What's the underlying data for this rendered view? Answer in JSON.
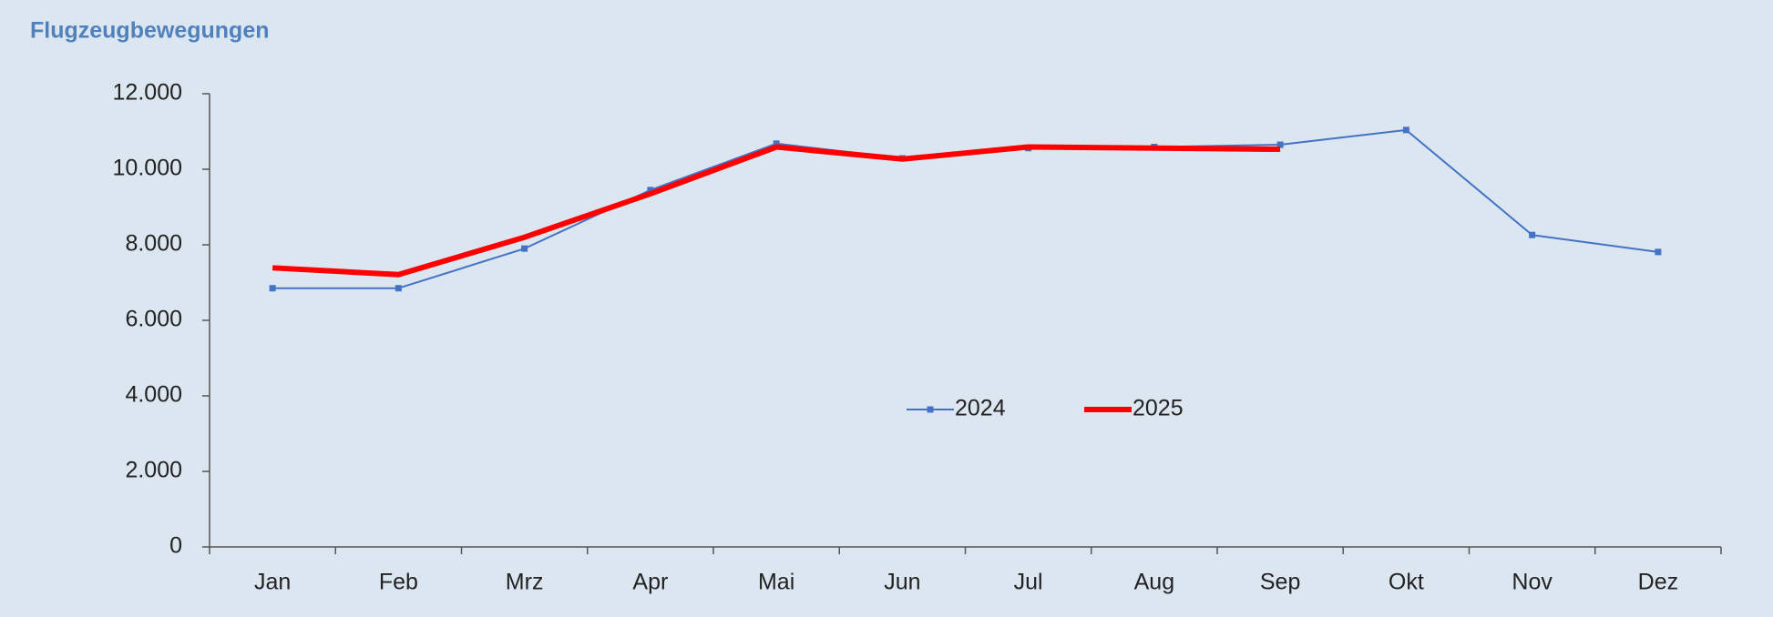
{
  "chart_data": {
    "type": "line",
    "title": "Flugzeugbewegungen",
    "categories": [
      "Jan",
      "Feb",
      "Mrz",
      "Apr",
      "Mai",
      "Jun",
      "Jul",
      "Aug",
      "Sep",
      "Okt",
      "Nov",
      "Dez"
    ],
    "series": [
      {
        "name": "2024",
        "color": "#4472c4",
        "values": [
          6850,
          6850,
          7900,
          9450,
          10680,
          10290,
          10560,
          10590,
          10650,
          11040,
          8260,
          7810
        ]
      },
      {
        "name": "2025",
        "color": "#ff0000",
        "values": [
          7390,
          7210,
          8200,
          9350,
          10590,
          10270,
          10590,
          10560,
          10530,
          null,
          null,
          null
        ]
      }
    ],
    "ylim": [
      0,
      12000
    ],
    "yticks": [
      0,
      {
        "value": 2000,
        "label": "2.000"
      },
      {
        "value": 4000,
        "label": "4.000"
      },
      {
        "value": 6000,
        "label": "6.000"
      },
      {
        "value": 8000,
        "label": "8.000"
      },
      {
        "value": 10000,
        "label": "10.000"
      },
      {
        "value": 12000,
        "label": "12.000"
      }
    ],
    "grid": false
  }
}
